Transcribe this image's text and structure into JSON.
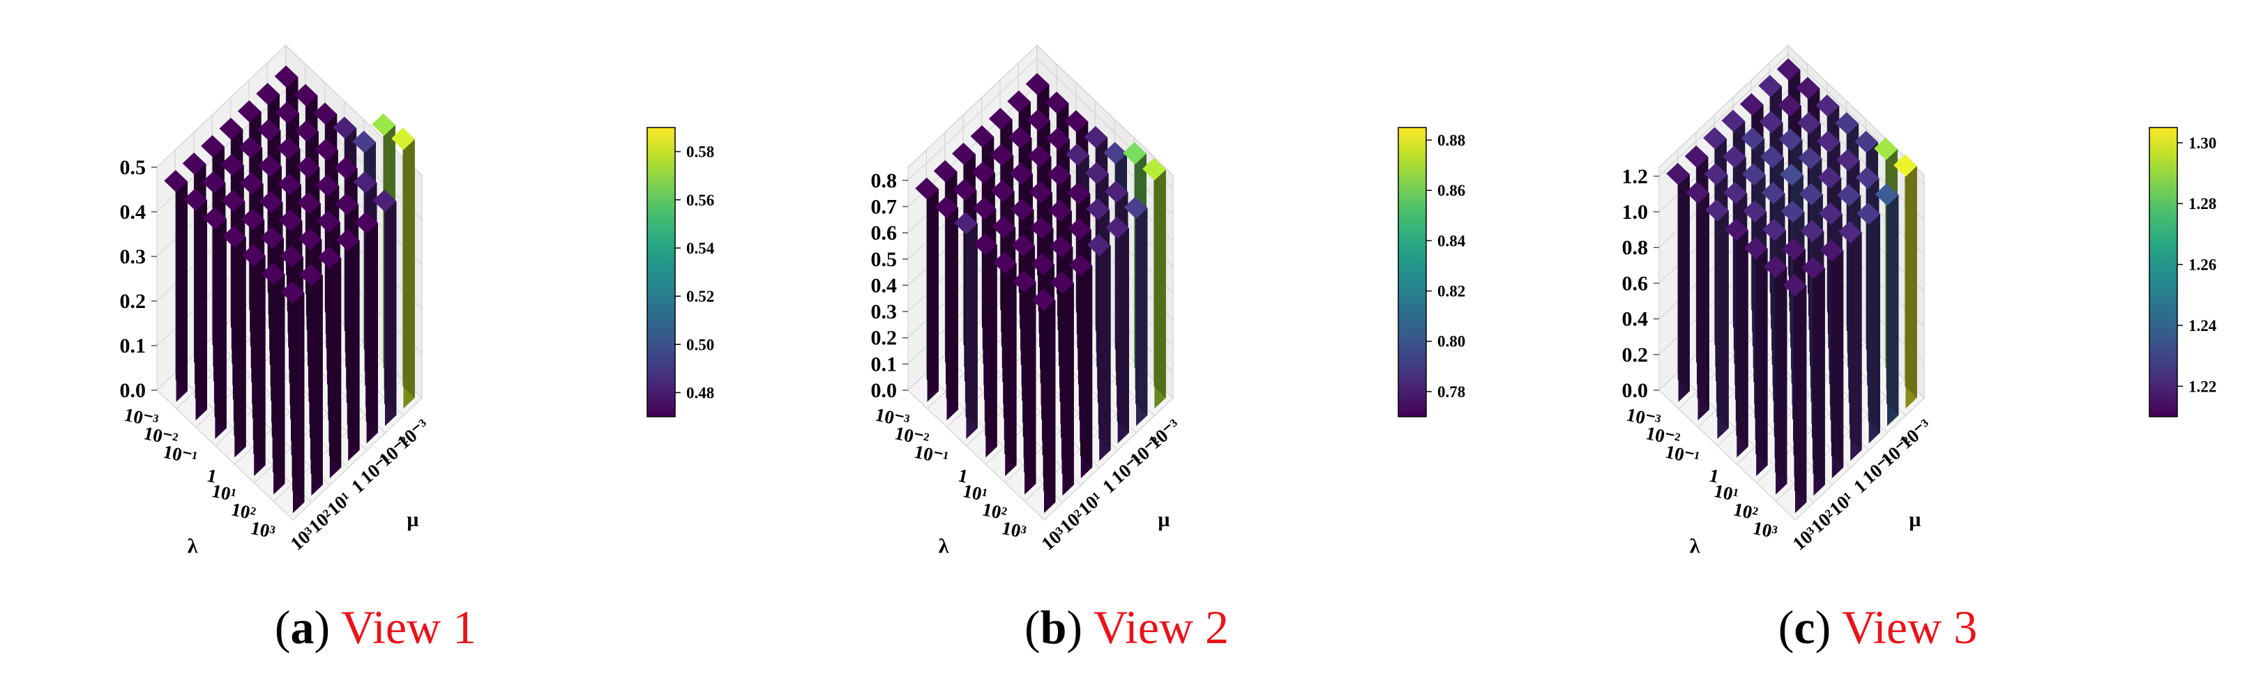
{
  "colormap": "viridis",
  "chart_data": [
    {
      "type": "bar3d",
      "caption": {
        "letter": "a",
        "title": "View 1"
      },
      "xlabel": "λ",
      "ylabel": "μ",
      "x_ticks": [
        "10⁻³",
        "10⁻²",
        "10⁻¹",
        "1",
        "10¹",
        "10²",
        "10³"
      ],
      "y_ticks": [
        "10³",
        "10²",
        "10¹",
        "1",
        "10⁻¹",
        "10⁻²",
        "10⁻³"
      ],
      "z_ticks": [
        "0.0",
        "0.1",
        "0.2",
        "0.3",
        "0.4",
        "0.5"
      ],
      "zlim": [
        0,
        0.5
      ],
      "colorbar": {
        "min": 0.47,
        "max": 0.59,
        "ticks": [
          "0.48",
          "0.50",
          "0.52",
          "0.54",
          "0.56",
          "0.58"
        ],
        "tick_values": [
          0.48,
          0.5,
          0.52,
          0.54,
          0.56,
          0.58
        ]
      },
      "values": [
        [
          0.47,
          0.47,
          0.47,
          0.47,
          0.47,
          0.47,
          0.47
        ],
        [
          0.47,
          0.47,
          0.47,
          0.47,
          0.47,
          0.47,
          0.47
        ],
        [
          0.47,
          0.47,
          0.47,
          0.47,
          0.47,
          0.47,
          0.47
        ],
        [
          0.47,
          0.47,
          0.47,
          0.47,
          0.47,
          0.47,
          0.48
        ],
        [
          0.47,
          0.47,
          0.47,
          0.47,
          0.47,
          0.47,
          0.49
        ],
        [
          0.47,
          0.47,
          0.47,
          0.47,
          0.47,
          0.48,
          0.57
        ],
        [
          0.47,
          0.47,
          0.47,
          0.47,
          0.47,
          0.48,
          0.58
        ]
      ]
    },
    {
      "type": "bar3d",
      "caption": {
        "letter": "b",
        "title": "View 2"
      },
      "xlabel": "λ",
      "ylabel": "μ",
      "x_ticks": [
        "10⁻³",
        "10⁻²",
        "10⁻¹",
        "1",
        "10¹",
        "10²",
        "10³"
      ],
      "y_ticks": [
        "10³",
        "10²",
        "10¹",
        "1",
        "10⁻¹",
        "10⁻²",
        "10⁻³"
      ],
      "z_ticks": [
        "0.0",
        "0.1",
        "0.2",
        "0.3",
        "0.4",
        "0.5",
        "0.6",
        "0.7",
        "0.8"
      ],
      "zlim": [
        0,
        0.85
      ],
      "colorbar": {
        "min": 0.77,
        "max": 0.885,
        "ticks": [
          "0.78",
          "0.80",
          "0.82",
          "0.84",
          "0.86",
          "0.88"
        ],
        "tick_values": [
          0.78,
          0.8,
          0.82,
          0.84,
          0.86,
          0.88
        ]
      },
      "values": [
        [
          0.77,
          0.77,
          0.77,
          0.77,
          0.77,
          0.77,
          0.77
        ],
        [
          0.77,
          0.77,
          0.77,
          0.77,
          0.77,
          0.77,
          0.77
        ],
        [
          0.78,
          0.77,
          0.77,
          0.77,
          0.77,
          0.77,
          0.77
        ],
        [
          0.77,
          0.77,
          0.77,
          0.77,
          0.77,
          0.78,
          0.78
        ],
        [
          0.77,
          0.77,
          0.77,
          0.77,
          0.77,
          0.78,
          0.79
        ],
        [
          0.77,
          0.77,
          0.77,
          0.77,
          0.78,
          0.78,
          0.86
        ],
        [
          0.77,
          0.77,
          0.77,
          0.78,
          0.78,
          0.79,
          0.87
        ]
      ]
    },
    {
      "type": "bar3d",
      "caption": {
        "letter": "c",
        "title": "View 3"
      },
      "xlabel": "λ",
      "ylabel": "μ",
      "x_ticks": [
        "10⁻³",
        "10⁻²",
        "10⁻¹",
        "1",
        "10¹",
        "10²",
        "10³"
      ],
      "y_ticks": [
        "10³",
        "10²",
        "10¹",
        "1",
        "10⁻¹",
        "10⁻²",
        "10⁻³"
      ],
      "z_ticks": [
        "0.0",
        "0.2",
        "0.4",
        "0.6",
        "0.8",
        "1.0",
        "1.2"
      ],
      "zlim": [
        0,
        1.25
      ],
      "colorbar": {
        "min": 1.21,
        "max": 1.305,
        "ticks": [
          "1.22",
          "1.24",
          "1.26",
          "1.28",
          "1.30"
        ],
        "tick_values": [
          1.22,
          1.24,
          1.26,
          1.28,
          1.3
        ]
      },
      "values": [
        [
          1.215,
          1.215,
          1.22,
          1.22,
          1.215,
          1.22,
          1.215
        ],
        [
          1.215,
          1.22,
          1.22,
          1.225,
          1.22,
          1.215,
          1.215
        ],
        [
          1.22,
          1.22,
          1.225,
          1.225,
          1.225,
          1.22,
          1.22
        ],
        [
          1.215,
          1.22,
          1.225,
          1.23,
          1.225,
          1.22,
          1.225
        ],
        [
          1.215,
          1.22,
          1.225,
          1.225,
          1.22,
          1.22,
          1.225
        ],
        [
          1.215,
          1.215,
          1.22,
          1.22,
          1.225,
          1.225,
          1.29
        ],
        [
          1.215,
          1.215,
          1.215,
          1.22,
          1.225,
          1.235,
          1.3
        ]
      ]
    }
  ]
}
